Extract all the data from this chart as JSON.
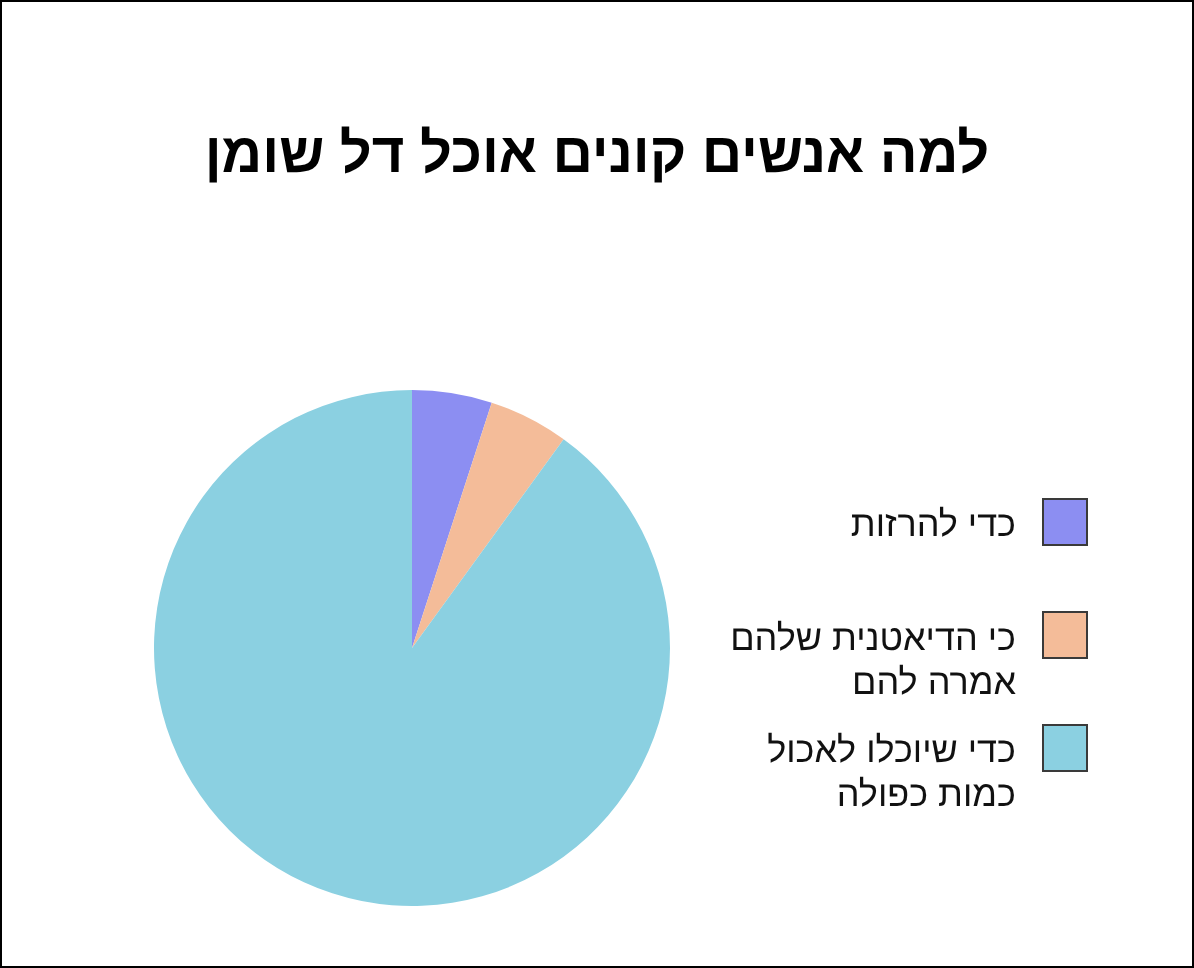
{
  "chart_data": {
    "type": "pie",
    "title": "למה אנשים קונים אוכל דל שומן",
    "categories": [
      "כדי להרזות",
      "כי הדיאטנית שלהם אמרה להם",
      "כדי שיוכלו לאכול כמות כפולה"
    ],
    "values": [
      5,
      5,
      90
    ],
    "colors": [
      "#8c8ef2",
      "#f4bc99",
      "#8bd0e1"
    ],
    "legend": "right"
  }
}
